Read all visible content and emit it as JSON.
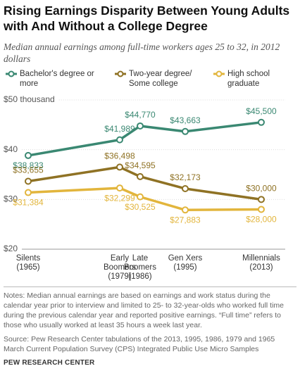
{
  "chart_data": {
    "type": "line",
    "title": "Rising Earnings Disparity Between Young Adults with And Without a College Degree",
    "subtitle": "Median annual earnings among full-time workers ages 25 to 32, in 2012 dollars",
    "categories": [
      "Silents\n(1965)",
      "Early\nBoomers\n(1979)",
      "Late\nBoomers\n(1986)",
      "Gen Xers\n(1995)",
      "Millennials\n(2013)"
    ],
    "series": [
      {
        "name": "Bachelor's degree or more",
        "color": "#3a8872",
        "values": [
          38.833,
          41.989,
          44.77,
          43.663,
          45.5
        ],
        "value_labels": [
          "$38,833",
          "$41,989",
          "$44,770",
          "$43,663",
          "$45,500"
        ]
      },
      {
        "name": "Two-year degree/ Some college",
        "color": "#8f7224",
        "values": [
          33.655,
          36.498,
          34.595,
          32.173,
          30.0
        ],
        "value_labels": [
          "$33,655",
          "$36,498",
          "$34,595",
          "$32,173",
          "$30,000"
        ]
      },
      {
        "name": "High school graduate",
        "color": "#e2b53c",
        "values": [
          31.384,
          32.299,
          30.525,
          27.883,
          28.0
        ],
        "value_labels": [
          "$31,384",
          "$32,299",
          "$30,525",
          "$27,883",
          "$28,000"
        ]
      }
    ],
    "ylim": [
      20,
      50
    ],
    "yticks": [
      {
        "value": 20,
        "label": "$20"
      },
      {
        "value": 30,
        "label": "$30"
      },
      {
        "value": 40,
        "label": "$40"
      },
      {
        "value": 50,
        "label": "$50 thousand"
      }
    ],
    "grid": true,
    "notes": "Notes: Median annual earnings are based on earnings and work status during the calendar year prior to interview and limited to 25- to 32-year-olds who worked full time during the previous calendar year and reported positive earnings. “Full time” refers to those who usually worked at least 35 hours a week last year.",
    "source": "Source: Pew Research Center tabulations of the 2013, 1995, 1986, 1979 and 1965 March Current Population Survey (CPS) Integrated Public Use Micro Samples",
    "credit": "PEW RESEARCH CENTER"
  }
}
